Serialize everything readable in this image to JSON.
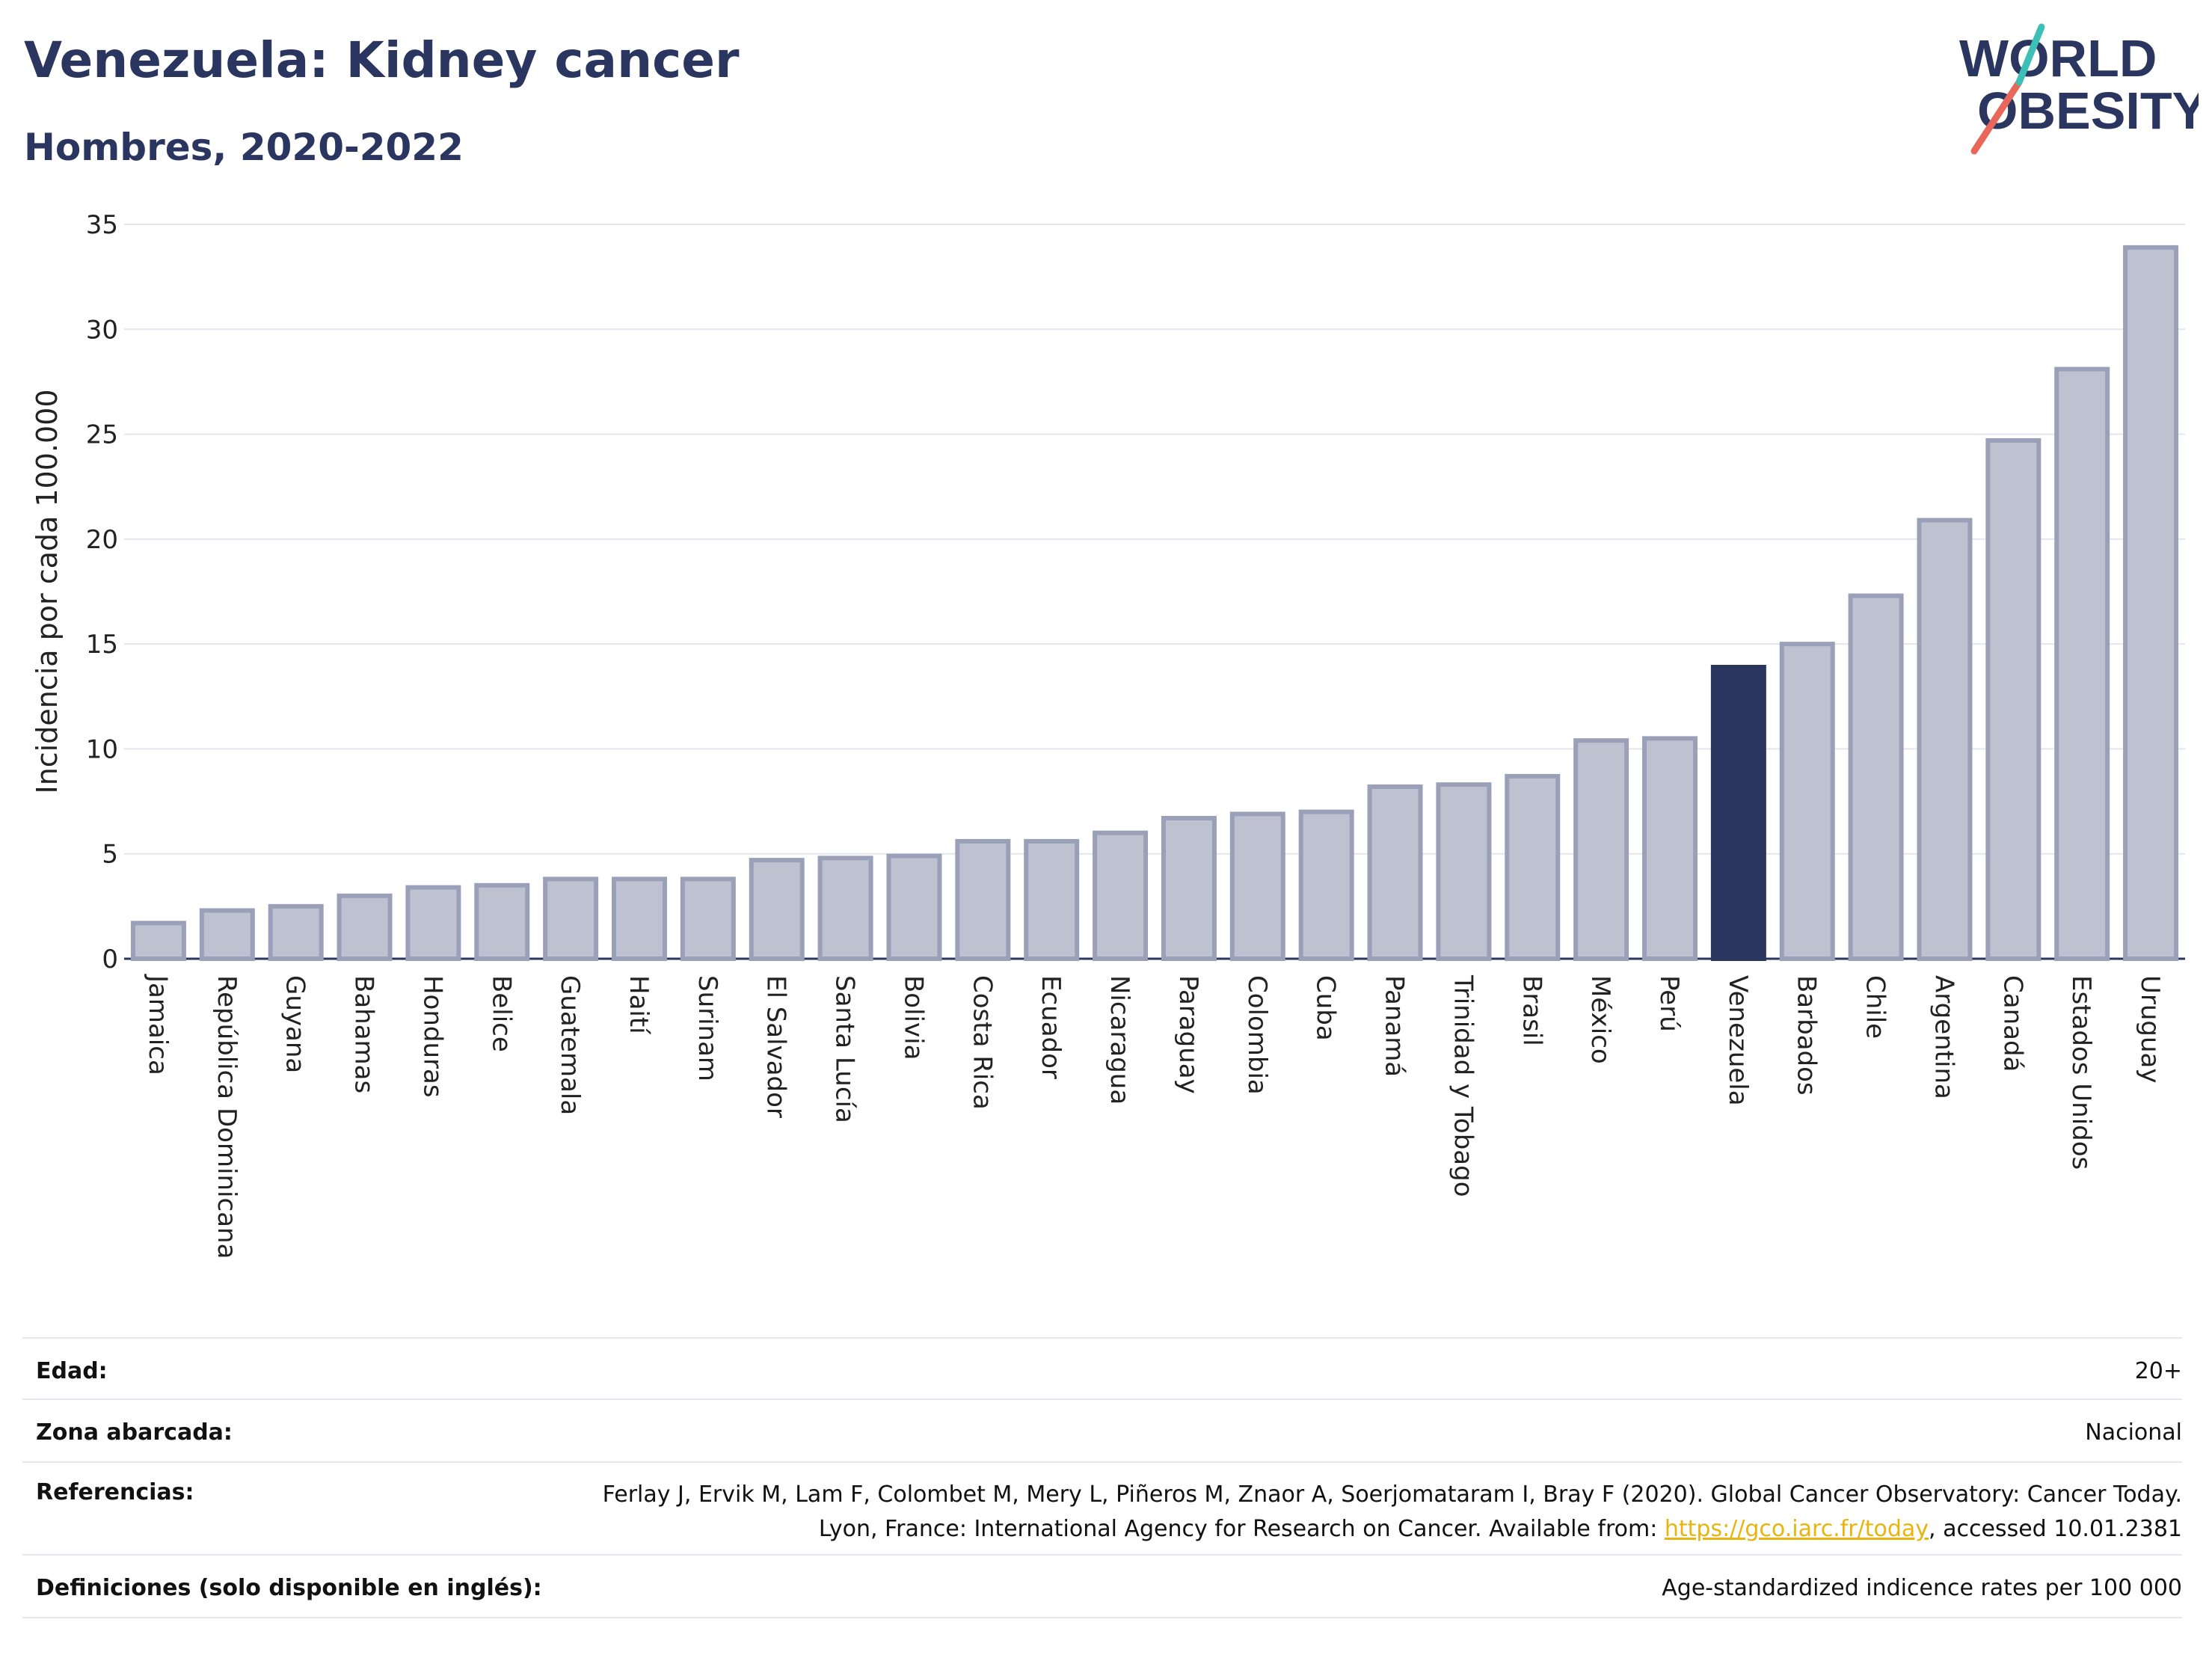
{
  "header": {
    "title": "Venezuela: Kidney cancer",
    "subtitle": "Hombres, 2020-2022"
  },
  "logo": {
    "line1": "WORLD",
    "line2": "OBESITY",
    "slash_colors": [
      "#e8675a",
      "#3dbfb6"
    ]
  },
  "colors": {
    "bar": "#bec2d0",
    "bar_border": "#9aa0b8",
    "highlight": "#2b3660",
    "text": "#2b3660",
    "grid": "#e3e6ee",
    "link": "#e8b40e"
  },
  "chart_data": {
    "type": "bar",
    "ylabel": "Incidencia por cada 100.000",
    "ylim": [
      0,
      35
    ],
    "yticks": [
      0,
      5,
      10,
      15,
      20,
      25,
      30,
      35
    ],
    "grid": true,
    "highlight": "Venezuela",
    "categories": [
      "Jamaica",
      "República Dominicana",
      "Guyana",
      "Bahamas",
      "Honduras",
      "Belice",
      "Guatemala",
      "Haití",
      "Surinam",
      "El Salvador",
      "Santa Lucía",
      "Bolivia",
      "Costa Rica",
      "Ecuador",
      "Nicaragua",
      "Paraguay",
      "Colombia",
      "Cuba",
      "Panamá",
      "Trinidad y Tobago",
      "Brasil",
      "México",
      "Perú",
      "Venezuela",
      "Barbados",
      "Chile",
      "Argentina",
      "Canadá",
      "Estados Unidos",
      "Uruguay"
    ],
    "values": [
      1.7,
      2.3,
      2.5,
      3.0,
      3.4,
      3.5,
      3.8,
      3.8,
      3.8,
      4.7,
      4.8,
      4.9,
      5.6,
      5.6,
      6.0,
      6.7,
      6.9,
      7.0,
      8.2,
      8.3,
      8.7,
      10.4,
      10.5,
      13.9,
      15.0,
      17.3,
      20.9,
      24.7,
      28.1,
      33.9
    ]
  },
  "meta": {
    "age_label": "Edad:",
    "age_value": "20+",
    "area_label": "Zona abarcada:",
    "area_value": "Nacional",
    "ref_label": "Referencias:",
    "ref_text_1": "Ferlay J, Ervik M, Lam F, Colombet M, Mery L, Piñeros M, Znaor A, Soerjomataram I, Bray F (2020). Global Cancer Observatory: Cancer Today. Lyon, France: International Agency for Research on Cancer. Available from: ",
    "ref_link": "https://gco.iarc.fr/today",
    "ref_text_2": ", accessed 10.01.2381",
    "def_label": "Definiciones (solo disponible en inglés):",
    "def_value": "Age-standardized indicence rates per 100 000"
  }
}
